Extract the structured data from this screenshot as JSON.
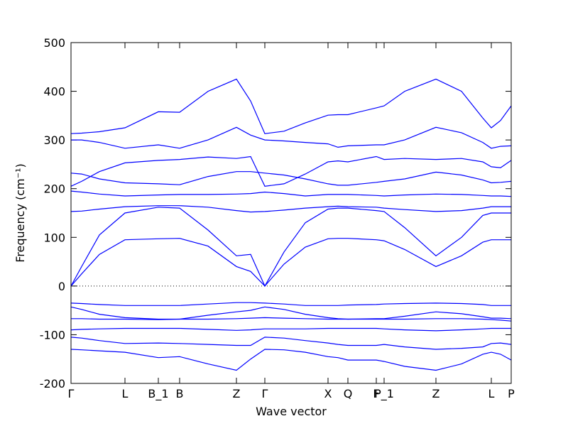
{
  "chart_data": {
    "type": "line",
    "xlabel": "Wave vector",
    "ylabel": "Frequency (cm⁻¹)",
    "color": "#0000ff",
    "zero_line": true,
    "xlim": [
      0,
      620
    ],
    "xticks": [
      {
        "value": 0,
        "label": "Γ"
      },
      {
        "value": 76,
        "label": "L"
      },
      {
        "value": 123,
        "label": "B_1"
      },
      {
        "value": 153,
        "label": "B"
      },
      {
        "value": 233,
        "label": "Z"
      },
      {
        "value": 273,
        "label": "Γ"
      },
      {
        "value": 362,
        "label": "X"
      },
      {
        "value": 390,
        "label": "Q"
      },
      {
        "value": 430,
        "label": "F"
      },
      {
        "value": 441,
        "label": "P_1"
      },
      {
        "value": 514,
        "label": "Z"
      },
      {
        "value": 592,
        "label": "L"
      },
      {
        "value": 620,
        "label": "P"
      }
    ],
    "ylim": [
      -200,
      500
    ],
    "yticks": [
      -200,
      -100,
      0,
      100,
      200,
      300,
      400,
      500
    ],
    "x": [
      0,
      15,
      40,
      76,
      123,
      153,
      193,
      233,
      253,
      273,
      300,
      330,
      362,
      376,
      390,
      430,
      441,
      470,
      514,
      550,
      580,
      592,
      605,
      620
    ],
    "series": [
      {
        "values": [
          313,
          314,
          317,
          325,
          358,
          357,
          400,
          425,
          380,
          313,
          318,
          335,
          351,
          352,
          352,
          366,
          370,
          400,
          425,
          400,
          345,
          325,
          340,
          370
        ]
      },
      {
        "values": [
          300,
          300,
          295,
          283,
          290,
          283,
          300,
          326,
          310,
          300,
          298,
          295,
          292,
          285,
          288,
          290,
          290,
          300,
          326,
          315,
          295,
          283,
          287,
          288
        ]
      },
      {
        "values": [
          205,
          215,
          235,
          253,
          258,
          260,
          265,
          262,
          266,
          205,
          210,
          230,
          255,
          257,
          255,
          266,
          260,
          262,
          260,
          262,
          255,
          245,
          243,
          258
        ]
      },
      {
        "values": [
          232,
          230,
          220,
          212,
          210,
          208,
          225,
          235,
          235,
          232,
          228,
          220,
          210,
          207,
          207,
          213,
          215,
          220,
          234,
          228,
          218,
          212,
          213,
          215
        ]
      },
      {
        "values": [
          195,
          193,
          189,
          185,
          187,
          188,
          188,
          189,
          190,
          193,
          190,
          185,
          188,
          188,
          188,
          186,
          185,
          187,
          189,
          188,
          186,
          185,
          185,
          184
        ]
      },
      {
        "values": [
          153,
          154,
          158,
          163,
          165,
          165,
          162,
          155,
          152,
          153,
          156,
          160,
          163,
          164,
          163,
          162,
          160,
          157,
          153,
          155,
          160,
          163,
          163,
          163
        ]
      },
      {
        "values": [
          0,
          40,
          105,
          150,
          162,
          160,
          115,
          62,
          65,
          0,
          70,
          130,
          158,
          160,
          160,
          155,
          153,
          120,
          62,
          100,
          145,
          150,
          150,
          150
        ]
      },
      {
        "values": [
          0,
          25,
          65,
          95,
          97,
          98,
          82,
          40,
          30,
          0,
          45,
          80,
          97,
          98,
          98,
          95,
          93,
          75,
          40,
          62,
          90,
          95,
          95,
          95
        ]
      },
      {
        "values": [
          -35,
          -36,
          -38,
          -40,
          -40,
          -40,
          -37,
          -34,
          -34,
          -35,
          -37,
          -40,
          -40,
          -40,
          -39,
          -38,
          -37,
          -36,
          -35,
          -36,
          -38,
          -40,
          -40,
          -40
        ]
      },
      {
        "values": [
          -43,
          -48,
          -58,
          -65,
          -68,
          -68,
          -60,
          -53,
          -50,
          -43,
          -48,
          -58,
          -65,
          -67,
          -68,
          -67,
          -67,
          -62,
          -53,
          -57,
          -63,
          -66,
          -66,
          -67
        ]
      },
      {
        "values": [
          -67,
          -67,
          -68,
          -68,
          -69,
          -68,
          -68,
          -67,
          -66,
          -65,
          -66,
          -67,
          -68,
          -68,
          -68,
          -68,
          -68,
          -68,
          -67,
          -67,
          -68,
          -69,
          -70,
          -72
        ]
      },
      {
        "values": [
          -90,
          -89,
          -88,
          -87,
          -87,
          -87,
          -89,
          -91,
          -90,
          -88,
          -88,
          -88,
          -87,
          -87,
          -87,
          -87,
          -88,
          -90,
          -92,
          -90,
          -88,
          -87,
          -87,
          -87
        ]
      },
      {
        "values": [
          -105,
          -107,
          -112,
          -118,
          -117,
          -118,
          -120,
          -122,
          -122,
          -105,
          -107,
          -112,
          -117,
          -120,
          -122,
          -122,
          -120,
          -125,
          -130,
          -128,
          -125,
          -118,
          -117,
          -120
        ]
      },
      {
        "values": [
          -130,
          -131,
          -133,
          -136,
          -147,
          -145,
          -160,
          -173,
          -150,
          -130,
          -131,
          -136,
          -145,
          -147,
          -152,
          -152,
          -155,
          -165,
          -173,
          -160,
          -140,
          -136,
          -140,
          -152
        ]
      }
    ]
  }
}
